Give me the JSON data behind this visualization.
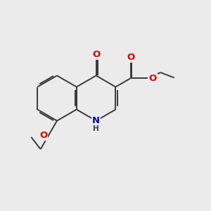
{
  "background_color": "#ebebeb",
  "bond_color": "#3a3a3a",
  "bond_width": 1.4,
  "atom_colors": {
    "O": "#dd0000",
    "N": "#0000bb",
    "C": "#3a3a3a",
    "H": "#3a3a3a"
  },
  "font_size": 8.5,
  "figsize": [
    3.0,
    3.0
  ],
  "dpi": 100
}
